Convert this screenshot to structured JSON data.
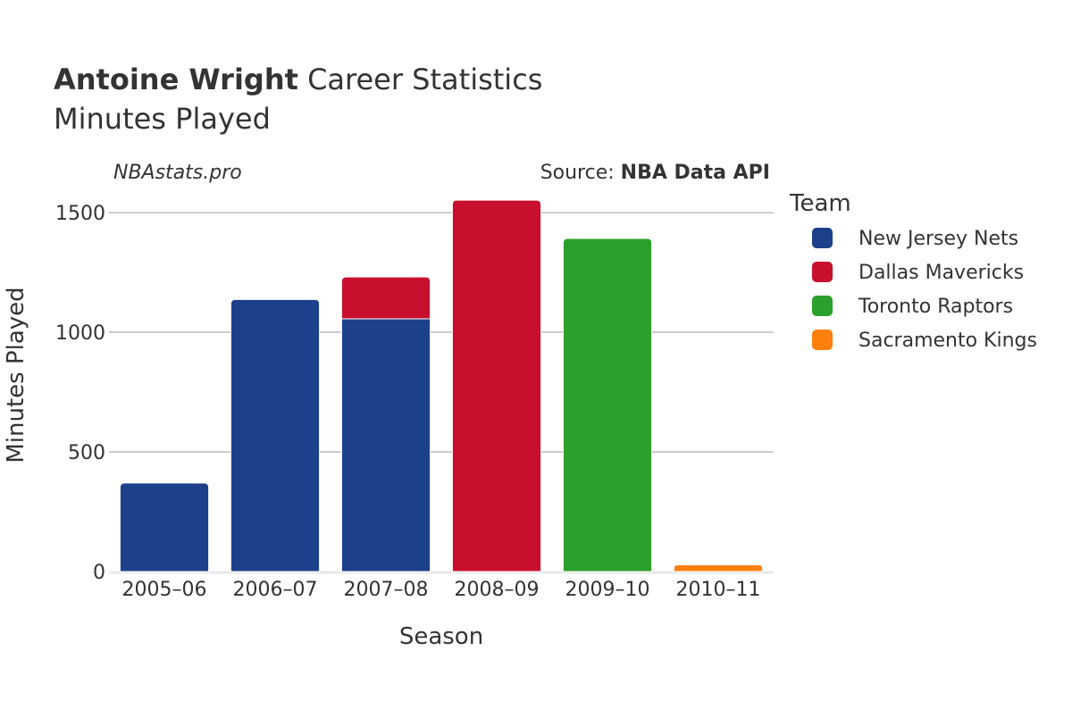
{
  "header": {
    "title_bold": "Antoine Wright",
    "title_rest": " Career Statistics",
    "subtitle": "Minutes Played",
    "watermark": "NBAstats.pro",
    "source_prefix": "Source: ",
    "source_bold": "NBA Data API"
  },
  "chart_data": {
    "type": "bar",
    "stacked": true,
    "categories": [
      "2005–06",
      "2006–07",
      "2007–08",
      "2008–09",
      "2009–10",
      "2010–11"
    ],
    "series": [
      {
        "name": "New Jersey Nets",
        "color": "#1c418a",
        "values": [
          370,
          1137,
          1056,
          0,
          0,
          0
        ]
      },
      {
        "name": "Dallas Mavericks",
        "color": "#c8102e",
        "values": [
          0,
          0,
          175,
          1552,
          0,
          0
        ]
      },
      {
        "name": "Toronto Raptors",
        "color": "#2ca02c",
        "values": [
          0,
          0,
          0,
          0,
          1392,
          0
        ]
      },
      {
        "name": "Sacramento Kings",
        "color": "#ff7f0e",
        "values": [
          0,
          0,
          0,
          0,
          0,
          28
        ]
      }
    ],
    "xlabel": "Season",
    "ylabel": "Minutes Played",
    "ylim": [
      0,
      1560
    ],
    "yticks": [
      0,
      500,
      1000,
      1500
    ],
    "grid": true,
    "legend_title": "Team",
    "legend_position": "right"
  }
}
